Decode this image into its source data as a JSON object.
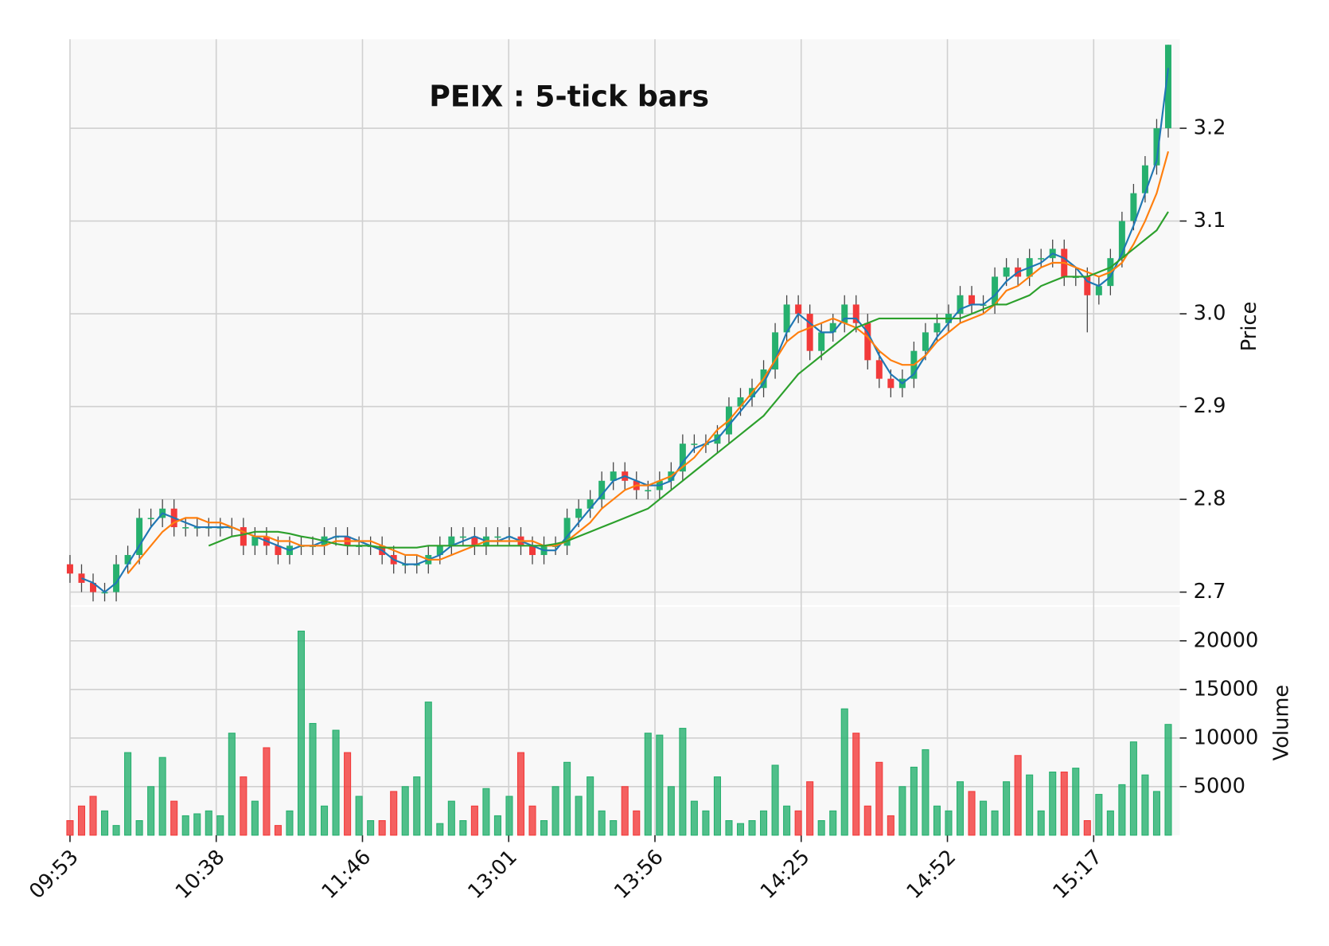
{
  "chart_data": {
    "type": "candlestick",
    "title": "PEIX : 5-tick bars",
    "ylabel": "Price",
    "up_color": "#26b06e",
    "down_color": "#f23a3a",
    "grid": true,
    "xlim": [
      0,
      96
    ],
    "xticks": [
      {
        "value": 0,
        "label": "09:53"
      },
      {
        "value": 12.65,
        "label": "10:38"
      },
      {
        "value": 25.3,
        "label": "11:46"
      },
      {
        "value": 37.95,
        "label": "13:01"
      },
      {
        "value": 50.6,
        "label": "13:56"
      },
      {
        "value": 63.25,
        "label": "14:25"
      },
      {
        "value": 75.9,
        "label": "14:52"
      },
      {
        "value": 88.55,
        "label": "15:17"
      }
    ],
    "ylim": [
      2.686,
      3.296
    ],
    "yticks": [
      2.7,
      2.8,
      2.9,
      {
        "value": 3,
        "label": "3.0"
      },
      3.1,
      3.2
    ],
    "open": [
      2.73,
      2.72,
      2.71,
      2.7,
      2.7,
      2.73,
      2.74,
      2.78,
      2.78,
      2.79,
      2.77,
      2.77,
      2.77,
      2.77,
      2.77,
      2.77,
      2.75,
      2.76,
      2.75,
      2.74,
      2.75,
      2.75,
      2.75,
      2.76,
      2.76,
      2.75,
      2.75,
      2.75,
      2.74,
      2.73,
      2.73,
      2.73,
      2.74,
      2.75,
      2.76,
      2.76,
      2.75,
      2.76,
      2.76,
      2.76,
      2.75,
      2.74,
      2.75,
      2.75,
      2.78,
      2.79,
      2.8,
      2.82,
      2.83,
      2.82,
      2.81,
      2.81,
      2.82,
      2.83,
      2.86,
      2.86,
      2.86,
      2.87,
      2.9,
      2.91,
      2.92,
      2.94,
      2.98,
      3.01,
      3.0,
      2.96,
      2.98,
      2.99,
      3.01,
      2.99,
      2.95,
      2.93,
      2.92,
      2.93,
      2.96,
      2.98,
      2.99,
      3.0,
      3.02,
      3.01,
      3.01,
      3.04,
      3.05,
      3.04,
      3.06,
      3.06,
      3.07,
      3.04,
      3.04,
      3.02,
      3.03,
      3.06,
      3.1,
      3.13,
      3.16,
      3.2
    ],
    "high": [
      2.74,
      2.73,
      2.72,
      2.71,
      2.74,
      2.75,
      2.79,
      2.79,
      2.8,
      2.8,
      2.78,
      2.78,
      2.78,
      2.78,
      2.78,
      2.78,
      2.77,
      2.77,
      2.76,
      2.76,
      2.76,
      2.76,
      2.77,
      2.77,
      2.77,
      2.76,
      2.76,
      2.76,
      2.75,
      2.74,
      2.74,
      2.75,
      2.76,
      2.77,
      2.77,
      2.77,
      2.77,
      2.77,
      2.77,
      2.77,
      2.76,
      2.76,
      2.76,
      2.79,
      2.8,
      2.81,
      2.83,
      2.84,
      2.84,
      2.83,
      2.82,
      2.83,
      2.84,
      2.87,
      2.87,
      2.87,
      2.88,
      2.91,
      2.92,
      2.93,
      2.95,
      2.99,
      3.02,
      3.02,
      3.01,
      2.99,
      3.0,
      3.02,
      3.02,
      3.0,
      2.96,
      2.94,
      2.94,
      2.97,
      2.99,
      3.0,
      3.01,
      3.03,
      3.03,
      3.02,
      3.05,
      3.06,
      3.06,
      3.07,
      3.07,
      3.08,
      3.08,
      3.05,
      3.05,
      3.04,
      3.07,
      3.11,
      3.14,
      3.17,
      3.21,
      3.29
    ],
    "low": [
      2.71,
      2.7,
      2.69,
      2.69,
      2.69,
      2.72,
      2.73,
      2.77,
      2.77,
      2.76,
      2.76,
      2.76,
      2.76,
      2.76,
      2.76,
      2.74,
      2.74,
      2.74,
      2.73,
      2.73,
      2.74,
      2.74,
      2.74,
      2.75,
      2.74,
      2.74,
      2.74,
      2.73,
      2.72,
      2.72,
      2.72,
      2.72,
      2.73,
      2.74,
      2.75,
      2.74,
      2.74,
      2.75,
      2.75,
      2.74,
      2.73,
      2.73,
      2.74,
      2.74,
      2.77,
      2.78,
      2.79,
      2.81,
      2.81,
      2.8,
      2.8,
      2.8,
      2.81,
      2.82,
      2.85,
      2.85,
      2.85,
      2.86,
      2.89,
      2.9,
      2.91,
      2.93,
      2.97,
      2.99,
      2.95,
      2.95,
      2.97,
      2.98,
      2.98,
      2.94,
      2.92,
      2.91,
      2.91,
      2.92,
      2.95,
      2.97,
      2.98,
      2.99,
      3.0,
      3.0,
      3.0,
      3.03,
      3.03,
      3.03,
      3.05,
      3.05,
      3.03,
      3.03,
      2.98,
      3.01,
      3.02,
      3.05,
      3.09,
      3.12,
      3.15,
      3.19
    ],
    "close": [
      2.72,
      2.71,
      2.7,
      2.7,
      2.73,
      2.74,
      2.78,
      2.78,
      2.79,
      2.77,
      2.77,
      2.77,
      2.77,
      2.77,
      2.77,
      2.75,
      2.76,
      2.75,
      2.74,
      2.75,
      2.75,
      2.75,
      2.76,
      2.76,
      2.75,
      2.75,
      2.75,
      2.74,
      2.73,
      2.73,
      2.73,
      2.74,
      2.75,
      2.76,
      2.76,
      2.75,
      2.76,
      2.76,
      2.76,
      2.75,
      2.74,
      2.75,
      2.75,
      2.78,
      2.79,
      2.8,
      2.82,
      2.83,
      2.82,
      2.81,
      2.81,
      2.82,
      2.83,
      2.86,
      2.86,
      2.86,
      2.87,
      2.9,
      2.91,
      2.92,
      2.94,
      2.98,
      3.01,
      3.0,
      2.96,
      2.98,
      2.99,
      3.01,
      2.99,
      2.95,
      2.93,
      2.92,
      2.93,
      2.96,
      2.98,
      2.99,
      3.0,
      3.02,
      3.01,
      3.01,
      3.04,
      3.05,
      3.04,
      3.06,
      3.06,
      3.07,
      3.04,
      3.04,
      3.02,
      3.03,
      3.06,
      3.1,
      3.13,
      3.16,
      3.2,
      3.29
    ],
    "moving_averages": [
      {
        "color": "#1f77b4",
        "values": [
          null,
          2.715,
          2.71,
          2.7,
          2.71,
          2.73,
          2.75,
          2.77,
          2.785,
          2.78,
          2.775,
          2.77,
          2.77,
          2.77,
          2.77,
          2.765,
          2.76,
          2.755,
          2.75,
          2.745,
          2.75,
          2.75,
          2.755,
          2.76,
          2.76,
          2.755,
          2.75,
          2.745,
          2.735,
          2.73,
          2.73,
          2.735,
          2.74,
          2.75,
          2.755,
          2.76,
          2.755,
          2.755,
          2.76,
          2.755,
          2.75,
          2.745,
          2.745,
          2.76,
          2.775,
          2.79,
          2.805,
          2.82,
          2.825,
          2.82,
          2.815,
          2.815,
          2.82,
          2.84,
          2.855,
          2.86,
          2.865,
          2.88,
          2.895,
          2.91,
          2.925,
          2.95,
          2.98,
          3.0,
          2.99,
          2.98,
          2.98,
          2.995,
          2.995,
          2.98,
          2.955,
          2.935,
          2.925,
          2.935,
          2.955,
          2.975,
          2.99,
          3.005,
          3.01,
          3.01,
          3.02,
          3.035,
          3.045,
          3.05,
          3.055,
          3.065,
          3.06,
          3.05,
          3.035,
          3.03,
          3.04,
          3.065,
          3.095,
          3.13,
          3.165,
          3.265
        ]
      },
      {
        "color": "#ff7f0e",
        "values": [
          null,
          null,
          null,
          null,
          null,
          2.72,
          2.735,
          2.75,
          2.765,
          2.775,
          2.78,
          2.78,
          2.775,
          2.775,
          2.77,
          2.765,
          2.76,
          2.76,
          2.755,
          2.755,
          2.75,
          2.75,
          2.75,
          2.755,
          2.755,
          2.755,
          2.755,
          2.75,
          2.745,
          2.74,
          2.74,
          2.735,
          2.735,
          2.74,
          2.745,
          2.75,
          2.755,
          2.755,
          2.755,
          2.755,
          2.755,
          2.75,
          2.75,
          2.755,
          2.765,
          2.775,
          2.79,
          2.8,
          2.81,
          2.815,
          2.815,
          2.82,
          2.825,
          2.835,
          2.845,
          2.86,
          2.875,
          2.885,
          2.9,
          2.915,
          2.93,
          2.95,
          2.97,
          2.98,
          2.985,
          2.99,
          2.995,
          2.99,
          2.985,
          2.975,
          2.96,
          2.95,
          2.945,
          2.945,
          2.955,
          2.97,
          2.98,
          2.99,
          2.995,
          3.0,
          3.01,
          3.025,
          3.03,
          3.04,
          3.05,
          3.055,
          3.055,
          3.05,
          3.045,
          3.04,
          3.045,
          3.055,
          3.075,
          3.1,
          3.13,
          3.175
        ]
      },
      {
        "color": "#2ca02c",
        "values": [
          null,
          null,
          null,
          null,
          null,
          null,
          null,
          null,
          null,
          null,
          null,
          null,
          2.75,
          2.755,
          2.76,
          2.762,
          2.765,
          2.765,
          2.765,
          2.763,
          2.76,
          2.758,
          2.755,
          2.752,
          2.75,
          2.75,
          2.75,
          2.748,
          2.748,
          2.748,
          2.748,
          2.75,
          2.75,
          2.75,
          2.75,
          2.75,
          2.75,
          2.75,
          2.75,
          2.75,
          2.75,
          2.75,
          2.752,
          2.755,
          2.76,
          2.765,
          2.77,
          2.775,
          2.78,
          2.785,
          2.79,
          2.8,
          2.81,
          2.82,
          2.83,
          2.84,
          2.85,
          2.86,
          2.87,
          2.88,
          2.89,
          2.905,
          2.92,
          2.935,
          2.945,
          2.955,
          2.965,
          2.975,
          2.985,
          2.99,
          2.995,
          2.995,
          2.995,
          2.995,
          2.995,
          2.995,
          2.995,
          2.995,
          3.0,
          3.005,
          3.01,
          3.01,
          3.015,
          3.02,
          3.03,
          3.035,
          3.04,
          3.04,
          3.04,
          3.045,
          3.05,
          3.06,
          3.07,
          3.08,
          3.09,
          3.11
        ]
      }
    ],
    "volume": {
      "label": "Volume",
      "ylim": [
        0,
        23500
      ],
      "yticks": [
        5000,
        10000,
        15000,
        20000
      ],
      "values": [
        1500,
        3000,
        4000,
        2500,
        1000,
        8500,
        1500,
        5000,
        8000,
        3500,
        2000,
        2200,
        2500,
        2000,
        10500,
        6000,
        3500,
        9000,
        1000,
        2500,
        21000,
        11500,
        3000,
        10800,
        8500,
        4000,
        1500,
        1500,
        4500,
        5000,
        6000,
        13700,
        1200,
        3500,
        1500,
        3000,
        4800,
        2000,
        4000,
        8500,
        3000,
        1500,
        5000,
        7500,
        4000,
        6000,
        2500,
        1500,
        5000,
        2500,
        10500,
        10300,
        5000,
        11000,
        3500,
        2500,
        6000,
        1500,
        1200,
        1500,
        2500,
        7200,
        3000,
        2500,
        5500,
        1500,
        2500,
        13000,
        10500,
        3000,
        7500,
        2000,
        5000,
        7000,
        8800,
        3000,
        2500,
        5500,
        4500,
        3500,
        2500,
        5500,
        8200,
        6200,
        2500,
        6500,
        6500,
        6900,
        1500,
        4200,
        2500,
        5200,
        9600,
        6200,
        4500,
        11400
      ]
    }
  }
}
